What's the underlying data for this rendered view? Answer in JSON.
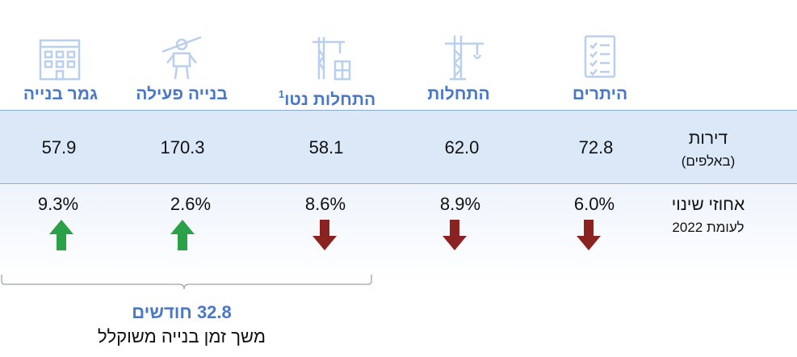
{
  "columns": [
    {
      "key": "permits",
      "title": "היתרים",
      "sup": "",
      "icon": "checklist-icon",
      "value": "72.8",
      "change": "6.0%",
      "direction": "down"
    },
    {
      "key": "starts",
      "title": "התחלות",
      "sup": "",
      "icon": "tower-crane-icon",
      "value": "62.0",
      "change": "8.9%",
      "direction": "down"
    },
    {
      "key": "net_starts",
      "title": "התחלות נטו",
      "sup": "1",
      "icon": "construction-site-icon",
      "value": "58.1",
      "change": "8.6%",
      "direction": "down"
    },
    {
      "key": "active",
      "title": "בנייה פעילה",
      "sup": "",
      "icon": "construction-worker-icon",
      "value": "170.3",
      "change": "2.6%",
      "direction": "up"
    },
    {
      "key": "completed",
      "title": "גמר בנייה",
      "sup": "",
      "icon": "building-icon",
      "value": "57.9",
      "change": "9.3%",
      "direction": "up"
    }
  ],
  "rows": {
    "values": {
      "label": "דירות",
      "sublabel": "(באלפים)"
    },
    "changes": {
      "label": "אחוזי שינוי",
      "sublabel": "לעומת 2022"
    }
  },
  "footnote": {
    "duration": "32.8 חודשים",
    "caption": "משך זמן בנייה משוקלל"
  },
  "colors": {
    "accent": "#4a78c6",
    "icon": "#b9cfee",
    "up": "#2aa149",
    "down": "#8b2222",
    "band": "#dbe8f8"
  }
}
